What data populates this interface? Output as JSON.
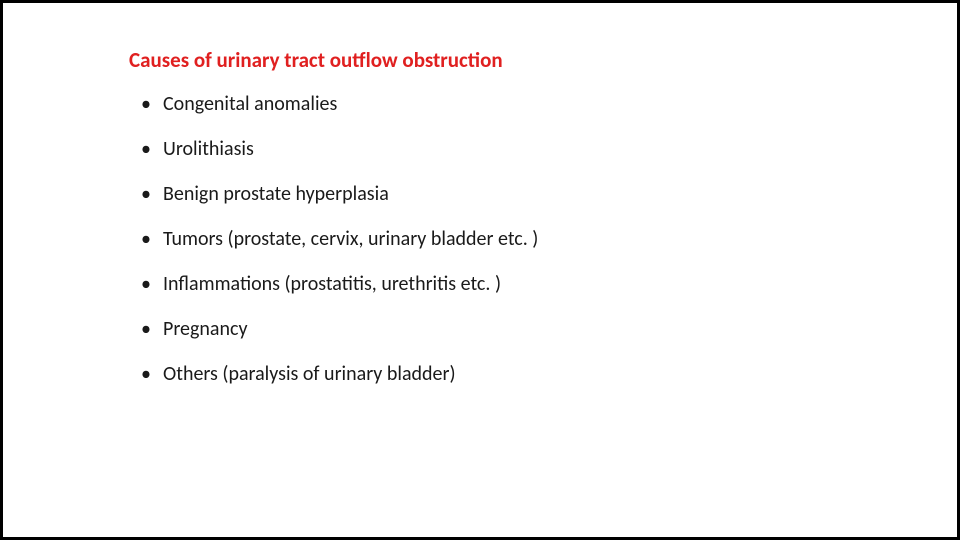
{
  "slide": {
    "title": "Causes of urinary tract outflow obstruction",
    "title_color": "#e02020",
    "title_fontsize": 21,
    "title_fontweight": 700,
    "text_color": "#1a1a1a",
    "text_fontsize": 20,
    "background_color": "#ffffff",
    "border_color": "#000000",
    "border_width": 3,
    "bullets": [
      "Congenital anomalies",
      "Urolithiasis",
      "Benign prostate hyperplasia",
      "Tumors (prostate, cervix, urinary bladder etc. )",
      "Inflammations (prostatitis, urethritis etc. )",
      "Pregnancy",
      "Others (paralysis of urinary bladder)"
    ]
  }
}
